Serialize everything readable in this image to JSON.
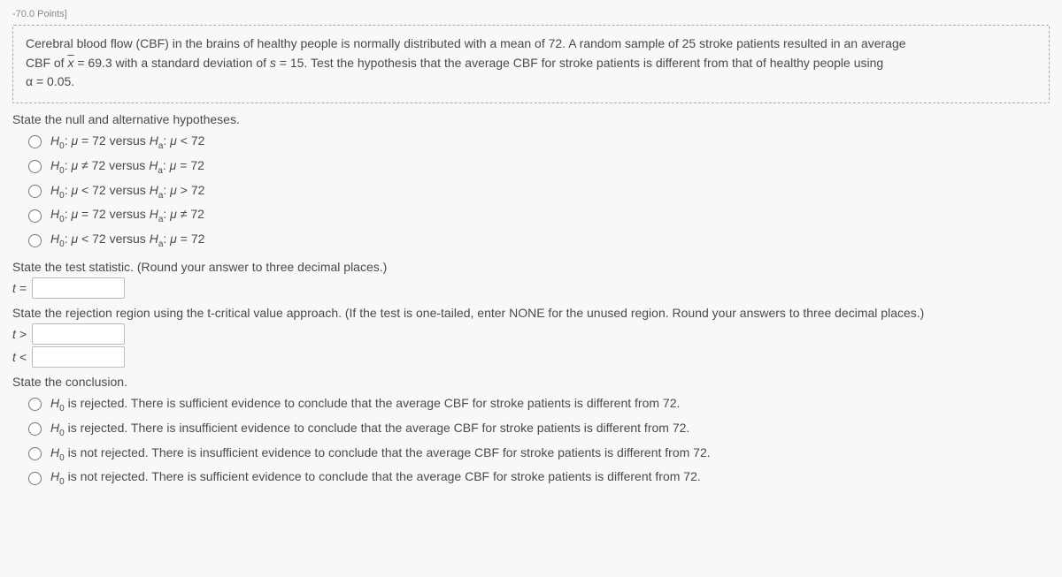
{
  "topStrip": "-70.0 Points]",
  "prompt": {
    "line1_a": "Cerebral blood flow (CBF) in the brains of healthy people is normally distributed with a mean of 72. A random sample of 25 stroke patients resulted in an average",
    "line2_a": "CBF of ",
    "xbar": "x",
    "line2_b": " = 69.3 with a standard deviation of ",
    "s": "s",
    "line2_c": " = 15. Test the hypothesis that the average CBF for stroke patients is different from that of healthy people using",
    "line3_a": "α = 0.05."
  },
  "q1": {
    "label": "State the null and alternative hypotheses.",
    "options": [
      {
        "h0_rel": "=",
        "ha_rel": "<"
      },
      {
        "h0_rel": "≠",
        "ha_rel": "="
      },
      {
        "h0_rel": "<",
        "ha_rel": ">"
      },
      {
        "h0_rel": "=",
        "ha_rel": "≠"
      },
      {
        "h0_rel": "<",
        "ha_rel": "="
      }
    ],
    "h0": "H",
    "h0sub": "0",
    "ha": "H",
    "hasub": "a",
    "mu": "μ",
    "val": "72",
    "colon": ": ",
    "versus": " versus "
  },
  "q2": {
    "label": "State the test statistic. (Round your answer to three decimal places.)",
    "stat": "t ="
  },
  "q3": {
    "label": "State the rejection region using the t-critical value approach. (If the test is one-tailed, enter NONE for the unused region. Round your answers to three decimal places.)",
    "gt": "t >",
    "lt": "t <"
  },
  "q4": {
    "label": "State the conclusion.",
    "options": [
      " is rejected. There is sufficient evidence to conclude that the average CBF for stroke patients is different from 72.",
      " is rejected. There is insufficient evidence to conclude that the average CBF for stroke patients is different from 72.",
      " is not rejected. There is insufficient evidence to conclude that the average CBF for stroke patients is different from 72.",
      " is not rejected. There is sufficient evidence to conclude that the average CBF for stroke patients is different from 72."
    ],
    "h0": "H",
    "h0sub": "0"
  }
}
